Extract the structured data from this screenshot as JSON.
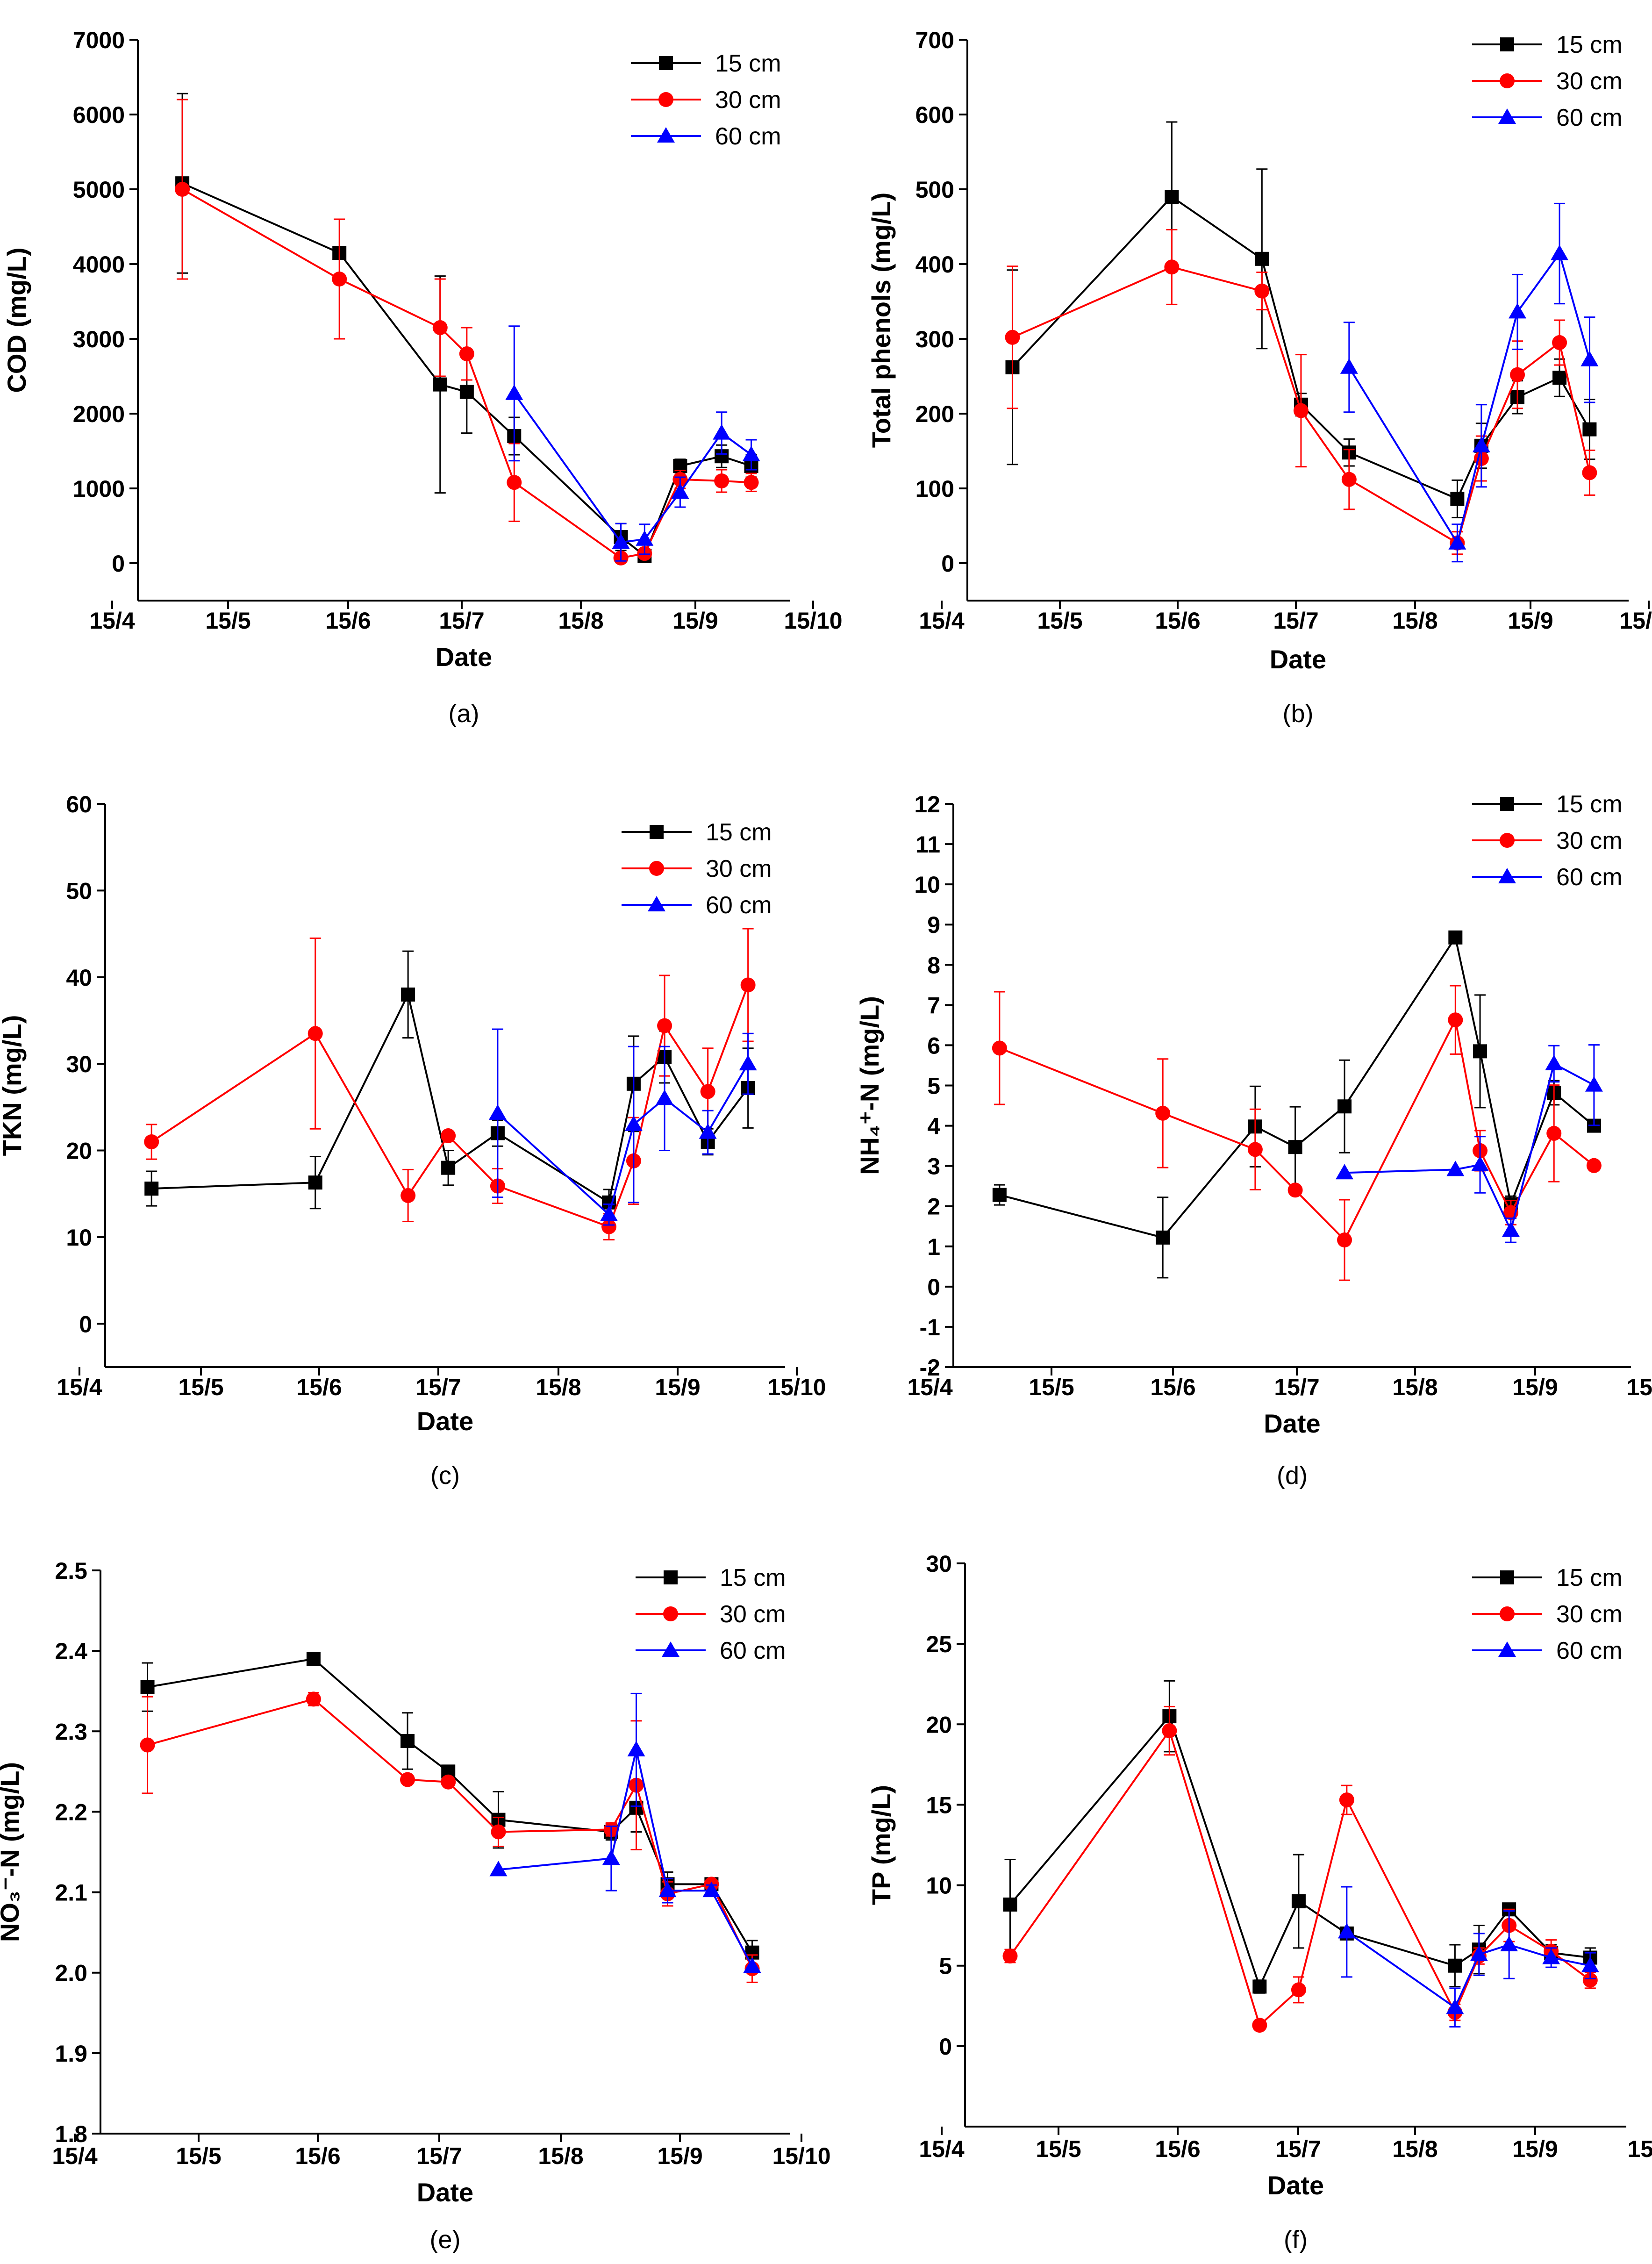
{
  "colors": {
    "s15": "#000000",
    "s30": "#ff0000",
    "s60": "#0000ff"
  },
  "x_ticks": [
    "15/4",
    "15/5",
    "15/6",
    "15/7",
    "15/8",
    "15/9",
    "15/10"
  ],
  "series_names": [
    "15 cm",
    "30 cm",
    "60 cm"
  ],
  "chart_data": [
    {
      "type": "line",
      "panel_label": "(a)",
      "xlabel": "Date",
      "ylabel": "COD (mg/L)",
      "ylim": [
        -500,
        7000
      ],
      "yticks": [
        "0",
        "1000",
        "2000",
        "3000",
        "4000",
        "5000",
        "6000",
        "7000"
      ],
      "xlim": [
        0,
        220
      ],
      "series": [
        {
          "name": "15 cm",
          "x": [
            15,
            68,
            102,
            111,
            127,
            163,
            171,
            183,
            197,
            207
          ],
          "y": [
            5080,
            4150,
            2390,
            2290,
            1700,
            350,
            100,
            1300,
            1430,
            1300
          ],
          "err": [
            1200,
            0,
            1450,
            550,
            250,
            180,
            60,
            90,
            150,
            150
          ]
        },
        {
          "name": "30 cm",
          "x": [
            15,
            68,
            102,
            111,
            127,
            163,
            171,
            183,
            197,
            207
          ],
          "y": [
            5000,
            3800,
            3150,
            2800,
            1080,
            70,
            130,
            1120,
            1100,
            1080
          ],
          "err": [
            1200,
            800,
            650,
            350,
            520,
            40,
            60,
            120,
            150,
            120
          ]
        },
        {
          "name": "60 cm",
          "x": [
            127,
            163,
            171,
            183,
            197,
            207
          ],
          "y": [
            2270,
            280,
            320,
            950,
            1740,
            1450
          ],
          "err": [
            900,
            250,
            200,
            200,
            280,
            200
          ]
        }
      ]
    },
    {
      "type": "line",
      "panel_label": "(b)",
      "xlabel": "Date",
      "ylabel": "Total phenols (mg/L)",
      "ylim": [
        -50,
        700
      ],
      "yticks": [
        "0",
        "100",
        "200",
        "300",
        "400",
        "500",
        "600",
        "700"
      ],
      "xlim": [
        0,
        220
      ],
      "series": [
        {
          "name": "15 cm",
          "x": [
            15,
            68,
            98,
            111,
            127,
            163,
            171,
            183,
            197,
            207
          ],
          "y": [
            262,
            490,
            407,
            212,
            148,
            86,
            157,
            222,
            248,
            179
          ],
          "err": [
            130,
            100,
            120,
            15,
            18,
            25,
            30,
            22,
            25,
            40
          ]
        },
        {
          "name": "30 cm",
          "x": [
            15,
            68,
            98,
            111,
            127,
            163,
            171,
            183,
            197,
            207
          ],
          "y": [
            302,
            396,
            364,
            204,
            112,
            27,
            140,
            252,
            295,
            121
          ],
          "err": [
            95,
            50,
            25,
            75,
            40,
            15,
            30,
            45,
            30,
            30
          ]
        },
        {
          "name": "60 cm",
          "x": [
            127,
            163,
            171,
            183,
            197,
            207
          ],
          "y": [
            262,
            27,
            157,
            336,
            414,
            272
          ],
          "err": [
            60,
            25,
            55,
            50,
            67,
            57
          ]
        }
      ]
    },
    {
      "type": "line",
      "panel_label": "(c)",
      "xlabel": "Date",
      "ylabel": "TKN (mg/L)",
      "ylim": [
        -5,
        60
      ],
      "yticks": [
        "0",
        "10",
        "20",
        "30",
        "40",
        "50",
        "60"
      ],
      "xlim": [
        0,
        220
      ],
      "series": [
        {
          "name": "15 cm",
          "x": [
            15,
            68,
            98,
            111,
            127,
            163,
            171,
            181,
            195,
            208
          ],
          "y": [
            15.6,
            16.3,
            38,
            18,
            22,
            14,
            27.7,
            30.8,
            21,
            27.2
          ],
          "err": [
            2,
            3,
            5,
            2,
            1.5,
            1.5,
            5.5,
            3,
            1.5,
            4.6
          ]
        },
        {
          "name": "30 cm",
          "x": [
            15,
            68,
            98,
            111,
            127,
            163,
            171,
            181,
            195,
            208
          ],
          "y": [
            21,
            33.5,
            14.8,
            21.7,
            15.9,
            11.2,
            18.8,
            34.4,
            26.8,
            39.1
          ],
          "err": [
            2,
            11,
            3,
            0,
            2,
            1.5,
            5,
            5.8,
            5,
            6.5
          ]
        },
        {
          "name": "60 cm",
          "x": [
            127,
            163,
            171,
            181,
            195,
            208
          ],
          "y": [
            24.3,
            12.6,
            23,
            26,
            22.1,
            30
          ],
          "err": [
            9.7,
            1.2,
            9,
            6,
            2.5,
            3.5
          ]
        }
      ]
    },
    {
      "type": "line",
      "panel_label": "(d)",
      "xlabel": "Date",
      "ylabel": "NH₄⁺-N (mg/L)",
      "ylim": [
        -2,
        12
      ],
      "yticks": [
        "-2",
        "-1",
        "0",
        "1",
        "2",
        "3",
        "4",
        "5",
        "6",
        "7",
        "8",
        "9",
        "10",
        "11",
        "12"
      ],
      "xlim": [
        0,
        220
      ],
      "series": [
        {
          "name": "15 cm",
          "x": [
            15,
            68,
            98,
            111,
            127,
            163,
            171,
            181,
            195,
            208
          ],
          "y": [
            2.28,
            1.22,
            3.98,
            3.47,
            4.48,
            8.68,
            5.85,
            2.05,
            4.82,
            4
          ],
          "err": [
            0.25,
            1,
            1,
            1,
            1.15,
            0,
            1.4,
            0.2,
            0.3,
            0
          ]
        },
        {
          "name": "30 cm",
          "x": [
            15,
            68,
            98,
            111,
            127,
            163,
            171,
            181,
            195,
            208
          ],
          "y": [
            5.93,
            4.31,
            3.41,
            2.4,
            1.16,
            6.63,
            3.38,
            1.84,
            3.81,
            3.01
          ],
          "err": [
            1.4,
            1.35,
            1,
            0,
            1,
            0.85,
            0.5,
            0.3,
            1.2,
            0
          ]
        },
        {
          "name": "60 cm",
          "x": [
            127,
            163,
            171,
            181,
            195,
            208
          ],
          "y": [
            2.83,
            2.91,
            3.03,
            1.4,
            5.54,
            5.01
          ],
          "err": [
            0,
            0,
            0.7,
            0.3,
            0.45,
            1
          ]
        }
      ]
    },
    {
      "type": "line",
      "panel_label": "(e)",
      "xlabel": "Date",
      "ylabel": "NO₃⁻-N (mg/L)",
      "ylim": [
        1.8,
        2.5
      ],
      "yticks": [
        "1.8",
        "1.9",
        "2.0",
        "2.1",
        "2.2",
        "2.3",
        "2.4",
        "2.5"
      ],
      "xlim": [
        0,
        220
      ],
      "series": [
        {
          "name": "15 cm",
          "x": [
            15,
            68,
            98,
            111,
            127,
            163,
            171,
            181,
            195,
            208
          ],
          "y": [
            2.355,
            2.39,
            2.288,
            2.25,
            2.19,
            2.175,
            2.205,
            2.11,
            2.11,
            2.025
          ],
          "err": [
            0.03,
            0.007,
            0.035,
            0.007,
            0.035,
            0.01,
            0.03,
            0.015,
            0,
            0.015
          ]
        },
        {
          "name": "30 cm",
          "x": [
            15,
            68,
            98,
            111,
            127,
            163,
            171,
            181,
            195,
            208
          ],
          "y": [
            2.283,
            2.34,
            2.24,
            2.237,
            2.175,
            2.178,
            2.233,
            2.098,
            2.11,
            2.005
          ],
          "err": [
            0.06,
            0.008,
            0.005,
            0.005,
            0.018,
            0.008,
            0.08,
            0.015,
            0,
            0.017
          ]
        },
        {
          "name": "60 cm",
          "x": [
            127,
            163,
            171,
            181,
            195,
            208
          ],
          "y": [
            2.128,
            2.142,
            2.277,
            2.102,
            2.102,
            2.008
          ],
          "err": [
            0,
            0.04,
            0.07,
            0.015,
            0.007,
            0
          ]
        }
      ]
    },
    {
      "type": "line",
      "panel_label": "(f)",
      "xlabel": "Date",
      "ylabel": "TP (mg/L)",
      "ylim": [
        -5,
        30
      ],
      "yticks": [
        "0",
        "5",
        "10",
        "15",
        "20",
        "25",
        "30"
      ],
      "xlim": [
        0,
        220
      ],
      "series": [
        {
          "name": "15 cm",
          "x": [
            15,
            68,
            98,
            111,
            127,
            163,
            171,
            181,
            195,
            208
          ],
          "y": [
            8.8,
            20.5,
            3.7,
            9,
            7,
            5,
            6,
            8.5,
            5.8,
            5.5
          ],
          "err": [
            2.8,
            2.2,
            0.4,
            2.9,
            0.3,
            1.3,
            1.5,
            0.3,
            0.5,
            0.6
          ]
        },
        {
          "name": "30 cm",
          "x": [
            15,
            68,
            98,
            111,
            127,
            163,
            171,
            181,
            195,
            208
          ],
          "y": [
            5.6,
            19.6,
            1.3,
            3.5,
            15.3,
            2.1,
            5.6,
            7.5,
            5.9,
            4.1
          ],
          "err": [
            0.4,
            1.5,
            0,
            0.8,
            0.9,
            0.5,
            0.5,
            1,
            0.7,
            0.5
          ]
        },
        {
          "name": "60 cm",
          "x": [
            127,
            163,
            171,
            181,
            195,
            208
          ],
          "y": [
            7.1,
            2.4,
            5.7,
            6.3,
            5.5,
            5
          ],
          "err": [
            2.8,
            1.2,
            1.3,
            2.1,
            0.6,
            0.8
          ]
        }
      ]
    }
  ]
}
